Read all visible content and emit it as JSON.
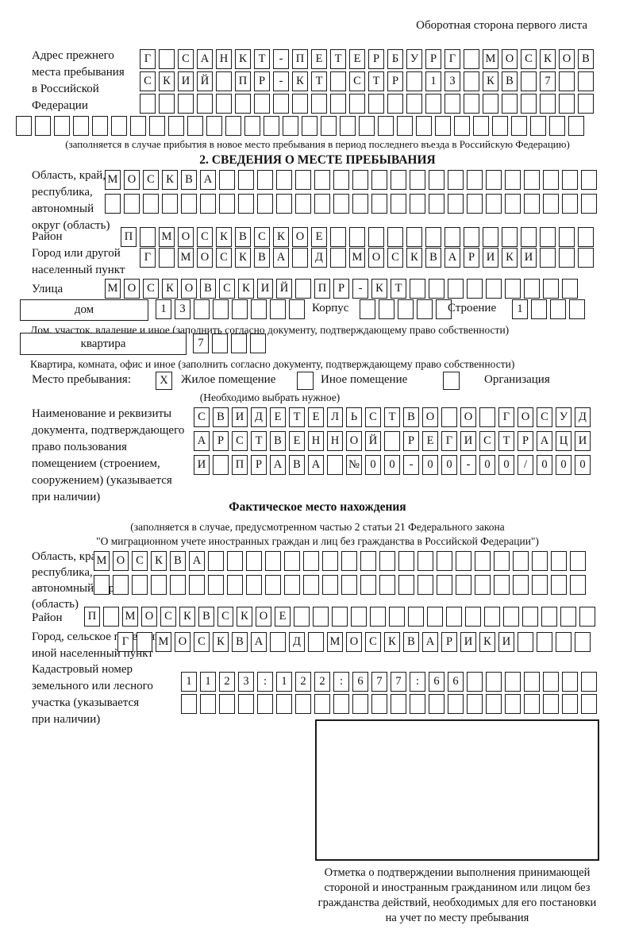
{
  "header_note": "Оборотная сторона первого листа",
  "prev_address": {
    "label": "Адрес прежнего\nместа пребывания\nв Российской\nФедерации",
    "rows": [
      {
        "text": "Г САНКТ-ПЕТЕРБУРГ МОСКОВ",
        "len": 24
      },
      {
        "text": "СКИЙ ПР-КТ СТР 13 КВ 7",
        "len": 24
      },
      {
        "text": "",
        "len": 24
      },
      {
        "text": "",
        "len": 30
      }
    ],
    "footnote": "(заполняется в случае прибытия в новое место пребывания в период последнего въезда в Российскую Федерацию)"
  },
  "section2": {
    "title": "2. СВЕДЕНИЯ О МЕСТЕ ПРЕБЫВАНИЯ",
    "region": {
      "label": "Область, край,\nреспублика,\nавтономный\nокруг (область)",
      "rows": [
        {
          "text": "МОСКВА",
          "len": 26
        },
        {
          "text": "",
          "len": 26
        }
      ]
    },
    "district": {
      "label": "Район",
      "row": {
        "text": "П МОСКВСКОЕ",
        "len": 25
      }
    },
    "city": {
      "label": "Город или другой\nнаселенный пункт",
      "row": {
        "text": "Г МОСКВА Д МОСКВАРИКИ",
        "len": 24
      }
    },
    "street": {
      "label": "Улица",
      "row": {
        "text": "МОСКОВСКИЙ ПР-КТ",
        "len": 25
      }
    },
    "house": {
      "name_label": "дом",
      "number": {
        "text": "13",
        "len": 8
      },
      "korpus_label": "Корпус",
      "korpus": {
        "text": "",
        "len": 5
      },
      "stroenie_label": "Строение",
      "stroenie": {
        "text": "1",
        "len": 4
      }
    },
    "house_caption": "Дом, участок, владение и иное (заполнить согласно документу, подтверждающему право собственности)",
    "apartment": {
      "name_label": "квартира",
      "number": {
        "text": "7",
        "len": 4
      }
    },
    "apartment_caption": "Квартира, комната, офис и иное (заполнить согласно документу, подтверждающему право собственности)",
    "stay_type": {
      "label": "Место пребывания:",
      "note": "(Необходимо выбрать нужное)",
      "options": [
        {
          "label": "Жилое помещение",
          "mark": "X"
        },
        {
          "label": "Иное помещение",
          "mark": ""
        },
        {
          "label": "Организация",
          "mark": ""
        }
      ]
    },
    "document": {
      "label": "Наименование и реквизиты\nдокумента, подтверждающего\nправо пользования\nпомещением (строением,\nсооружением) (указывается\nпри наличии)",
      "rows": [
        {
          "text": "СВИДЕТЕЛЬСТВО О ГОСУД",
          "len": 21
        },
        {
          "text": "АРСТВЕННОЙ РЕГИСТРАЦИ",
          "len": 21
        },
        {
          "text": "И ПРАВА №00-00-00/000",
          "len": 21
        }
      ]
    }
  },
  "actual_location": {
    "title": "Фактическое место нахождения",
    "footnote": "(заполняется в случае, предусмотренном частью 2 статьи 21 Федерального закона\n\"О миграционном учете иностранных граждан и лиц без гражданства в Российской Федерации\")",
    "region": {
      "label": "Область, край,\nреспублика,\nавтономный округ\n(область)",
      "rows": [
        {
          "text": "МОСКВА",
          "len": 26
        },
        {
          "text": "",
          "len": 26
        }
      ]
    },
    "district": {
      "label": "Район",
      "row": {
        "text": "П МОСКВСКОЕ",
        "len": 27
      }
    },
    "city": {
      "label": "Город, сельское поселение,\nиной населенный пункт",
      "row": {
        "text": "Г МОСКВА Д МОСКВАРИКИ",
        "len": 25
      }
    },
    "cadastral": {
      "label": "Кадастровый номер\nземельного или лесного\nучастка (указывается\nпри наличии)",
      "rows": [
        {
          "text": "1123:122:677:66",
          "len": 22
        },
        {
          "text": "",
          "len": 22
        }
      ]
    },
    "stamp_caption": "Отметка о подтверждении выполнения принимающей\nстороной и иностранным гражданином или лицом без\nгражданства действий, необходимых для его постановки\nна учет по месту пребывания"
  }
}
